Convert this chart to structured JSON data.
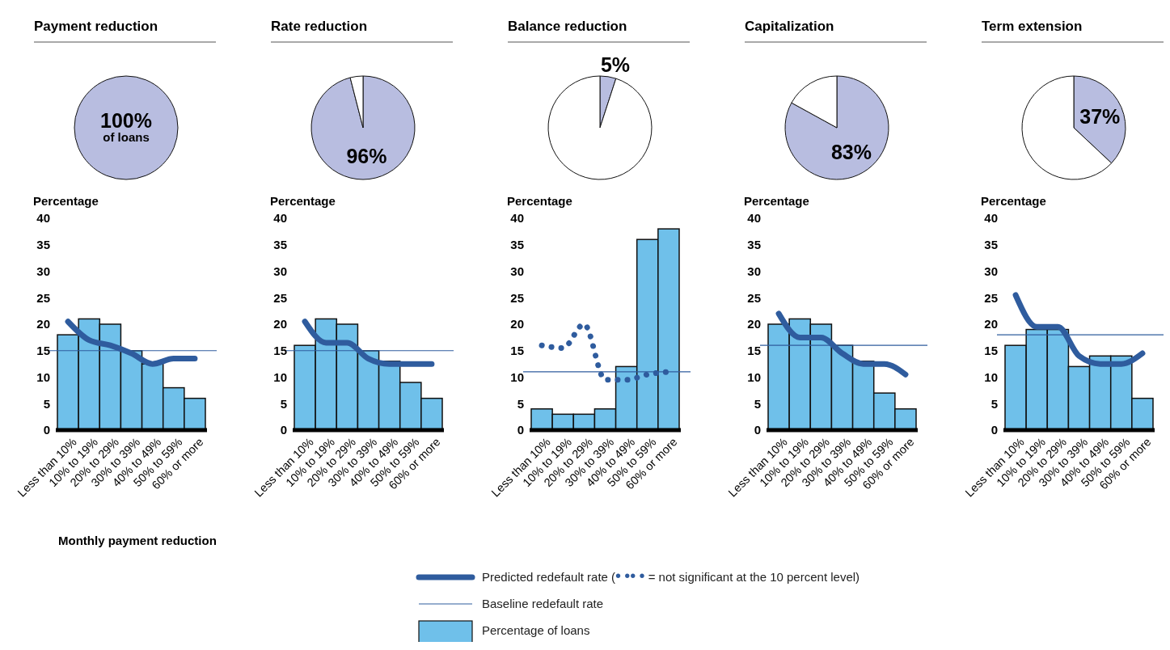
{
  "chart_data": [
    {
      "type": "pie",
      "title": "Payment reduction",
      "categories": [
        null
      ],
      "values": [
        100
      ],
      "colors": [
        "#b8bde0"
      ],
      "value_labels": [
        "100% of loans"
      ]
    },
    {
      "type": "bar",
      "ylabel": "Percentage",
      "xlabel": "Monthly payment reduction",
      "categories": [
        "Less than 10%",
        "10% to 19%",
        "20% to 29%",
        "30% to 39%",
        "40% to 49%",
        "50% to 59%",
        "60% or more"
      ],
      "ylim": [
        0,
        40
      ],
      "yticks": [
        0,
        5,
        10,
        15,
        20,
        25,
        30,
        35,
        40
      ],
      "grid": false,
      "legend": "bottom",
      "series": [
        {
          "type": "bar",
          "name": "Percentage of loans",
          "color": "#6fc0ea",
          "values": [
            18,
            21,
            20,
            15,
            12.5,
            8,
            6
          ]
        },
        {
          "type": "line",
          "name": "Predicted redefault rate (• •• • = not significant at the 10 percent level)",
          "color": "#2f5c9e",
          "line_style": "solid",
          "values": [
            20.5,
            17,
            16,
            14.5,
            12.5,
            13.5,
            13.5
          ]
        }
      ],
      "ref_lines": [
        {
          "axis": "y",
          "value": 15,
          "label": "Baseline redefault rate",
          "color": "#2f5c9e"
        }
      ]
    },
    {
      "type": "pie",
      "title": "Rate reduction",
      "categories": [
        null,
        null
      ],
      "values": [
        96,
        4
      ],
      "colors": [
        "#b8bde0",
        "#ffffff"
      ],
      "value_labels": [
        "96%",
        null
      ]
    },
    {
      "type": "bar",
      "ylabel": "Percentage",
      "categories": [
        "Less than 10%",
        "10% to 19%",
        "20% to 29%",
        "30% to 39%",
        "40% to 49%",
        "50% to 59%",
        "60% or more"
      ],
      "ylim": [
        0,
        40
      ],
      "yticks": [
        0,
        5,
        10,
        15,
        20,
        25,
        30,
        35,
        40
      ],
      "grid": false,
      "series": [
        {
          "type": "bar",
          "color": "#6fc0ea",
          "values": [
            16,
            21,
            20,
            15,
            13,
            9,
            6
          ]
        },
        {
          "type": "line",
          "color": "#2f5c9e",
          "line_style": "solid",
          "values": [
            20.5,
            16.5,
            16.5,
            13.5,
            12.5,
            12.5,
            12.5
          ]
        }
      ],
      "ref_lines": [
        {
          "axis": "y",
          "value": 15,
          "color": "#2f5c9e"
        }
      ]
    },
    {
      "type": "pie",
      "title": "Balance reduction",
      "categories": [
        null,
        null
      ],
      "values": [
        5,
        95
      ],
      "colors": [
        "#b8bde0",
        "#ffffff"
      ],
      "value_labels": [
        "5%",
        null
      ]
    },
    {
      "type": "bar",
      "ylabel": "Percentage",
      "categories": [
        "Less than 10%",
        "10% to 19%",
        "20% to 29%",
        "30% to 39%",
        "40% to 49%",
        "50% to 59%",
        "60% or more"
      ],
      "ylim": [
        0,
        40
      ],
      "yticks": [
        0,
        5,
        10,
        15,
        20,
        25,
        30,
        35,
        40
      ],
      "grid": false,
      "series": [
        {
          "type": "bar",
          "color": "#6fc0ea",
          "values": [
            4,
            3,
            3,
            4,
            12,
            36,
            38
          ]
        },
        {
          "type": "line",
          "color": "#2f5c9e",
          "line_style": "dotted",
          "values": [
            16,
            15.5,
            20,
            9.5,
            9.5,
            10.5,
            11
          ]
        }
      ],
      "ref_lines": [
        {
          "axis": "y",
          "value": 11,
          "color": "#2f5c9e"
        }
      ]
    },
    {
      "type": "pie",
      "title": "Capitalization",
      "categories": [
        null,
        null
      ],
      "values": [
        83,
        17
      ],
      "colors": [
        "#b8bde0",
        "#ffffff"
      ],
      "value_labels": [
        "83%",
        null
      ]
    },
    {
      "type": "bar",
      "ylabel": "Percentage",
      "categories": [
        "Less than 10%",
        "10% to 19%",
        "20% to 29%",
        "30% to 39%",
        "40% to 49%",
        "50% to 59%",
        "60% or more"
      ],
      "ylim": [
        0,
        40
      ],
      "yticks": [
        0,
        5,
        10,
        15,
        20,
        25,
        30,
        35,
        40
      ],
      "grid": false,
      "series": [
        {
          "type": "bar",
          "color": "#6fc0ea",
          "values": [
            20,
            21,
            20,
            16,
            13,
            7,
            4
          ]
        },
        {
          "type": "line",
          "color": "#2f5c9e",
          "line_style": "solid",
          "values": [
            22,
            17.5,
            17.5,
            14.5,
            12.5,
            12.5,
            10.5
          ]
        }
      ],
      "ref_lines": [
        {
          "axis": "y",
          "value": 16,
          "color": "#2f5c9e"
        }
      ]
    },
    {
      "type": "pie",
      "title": "Term extension",
      "categories": [
        null,
        null
      ],
      "values": [
        37,
        63
      ],
      "colors": [
        "#b8bde0",
        "#ffffff"
      ],
      "value_labels": [
        "37%",
        null
      ]
    },
    {
      "type": "bar",
      "ylabel": "Percentage",
      "categories": [
        "Less than 10%",
        "10% to 19%",
        "20% to 29%",
        "30% to 39%",
        "40% to 49%",
        "50% to 59%",
        "60% or more"
      ],
      "ylim": [
        0,
        40
      ],
      "yticks": [
        0,
        5,
        10,
        15,
        20,
        25,
        30,
        35,
        40
      ],
      "grid": false,
      "series": [
        {
          "type": "bar",
          "color": "#6fc0ea",
          "values": [
            16,
            19,
            19,
            12,
            14,
            14,
            6
          ]
        },
        {
          "type": "line",
          "color": "#2f5c9e",
          "line_style": "solid",
          "values": [
            25.5,
            19.5,
            19.5,
            14,
            12.5,
            12.5,
            14.5
          ]
        }
      ],
      "ref_lines": [
        {
          "axis": "y",
          "value": 18,
          "color": "#2f5c9e"
        }
      ]
    }
  ]
}
